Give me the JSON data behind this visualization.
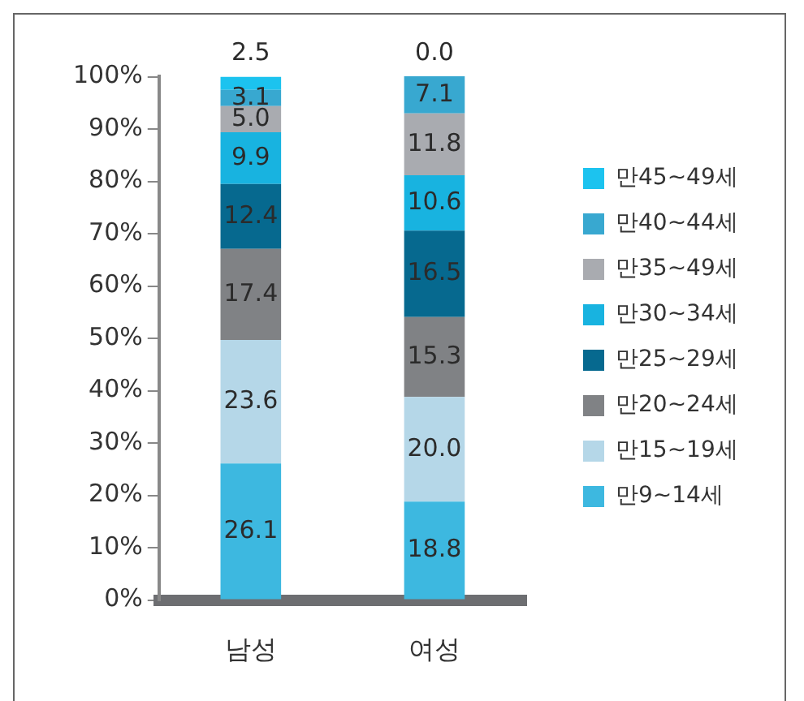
{
  "chart_data": {
    "type": "bar",
    "stacked": true,
    "categories": [
      "남성",
      "여성"
    ],
    "ylim": [
      0,
      100.1
    ],
    "yticks": [
      {
        "value": 0,
        "label": "0%"
      },
      {
        "value": 10,
        "label": "10%"
      },
      {
        "value": 20,
        "label": "20%"
      },
      {
        "value": 30,
        "label": "30%"
      },
      {
        "value": 40,
        "label": "40%"
      },
      {
        "value": 50,
        "label": "50%"
      },
      {
        "value": 60,
        "label": "60%"
      },
      {
        "value": 70,
        "label": "70%"
      },
      {
        "value": 80,
        "label": "80%"
      },
      {
        "value": 90,
        "label": "90%"
      },
      {
        "value": 100,
        "label": "100%"
      }
    ],
    "legend": "right",
    "series": [
      {
        "name": "만9~14세",
        "color": "#3db8e0",
        "values": [
          26.1,
          18.8
        ],
        "value_labels": [
          "26.1",
          "18.8"
        ]
      },
      {
        "name": "만15~19세",
        "color": "#b5d7e8",
        "values": [
          23.6,
          20.0
        ],
        "value_labels": [
          "23.6",
          "20.0"
        ]
      },
      {
        "name": "만20~24세",
        "color": "#808285",
        "values": [
          17.4,
          15.3
        ],
        "value_labels": [
          "17.4",
          "15.3"
        ]
      },
      {
        "name": "만25~29세",
        "color": "#06698f",
        "values": [
          12.4,
          16.5
        ],
        "value_labels": [
          "12.4",
          "16.5"
        ]
      },
      {
        "name": "만30~34세",
        "color": "#18b3e0",
        "values": [
          9.9,
          10.6
        ],
        "value_labels": [
          "9.9",
          "10.6"
        ]
      },
      {
        "name": "만35~49세",
        "color": "#a9abb0",
        "values": [
          5.0,
          11.8
        ],
        "value_labels": [
          "5.0",
          "11.8"
        ]
      },
      {
        "name": "만40~44세",
        "color": "#38a8d0",
        "values": [
          3.1,
          7.1
        ],
        "value_labels": [
          "3.1",
          "7.1"
        ]
      },
      {
        "name": "만45~49세",
        "color": "#1cc3ef",
        "values": [
          2.5,
          0.0
        ],
        "value_labels": [
          "2.5",
          "0.0"
        ]
      }
    ]
  }
}
